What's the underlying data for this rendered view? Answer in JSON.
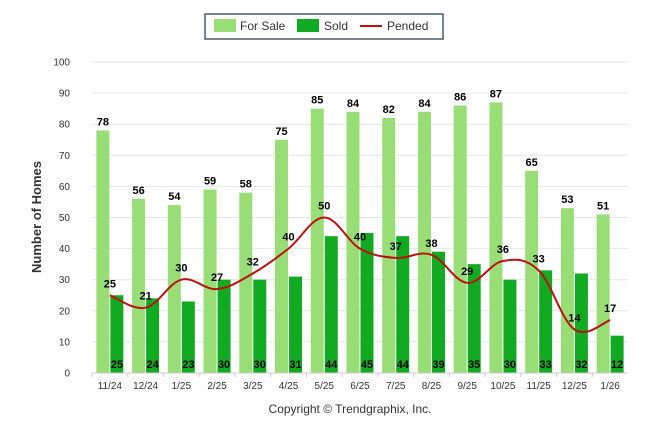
{
  "chart_data": {
    "type": "bar",
    "title": "",
    "xlabel": "",
    "ylabel": "Number of Homes",
    "ylim": [
      0,
      100
    ],
    "yticks": [
      0,
      10,
      20,
      30,
      40,
      50,
      60,
      70,
      80,
      90,
      100
    ],
    "grid": true,
    "legend_position": "top-center",
    "categories": [
      "11/24",
      "12/24",
      "1/25",
      "2/25",
      "3/25",
      "4/25",
      "5/25",
      "6/25",
      "7/25",
      "8/25",
      "9/25",
      "10/25",
      "11/25",
      "12/25",
      "1/26"
    ],
    "series": [
      {
        "name": "For Sale",
        "type": "bar",
        "color": "#99dd77",
        "values": [
          78,
          56,
          54,
          59,
          58,
          75,
          85,
          84,
          82,
          84,
          86,
          87,
          65,
          53,
          51
        ]
      },
      {
        "name": "Sold",
        "type": "bar",
        "color": "#11aa22",
        "values": [
          25,
          24,
          23,
          30,
          30,
          31,
          44,
          45,
          44,
          39,
          35,
          30,
          33,
          32,
          12
        ]
      },
      {
        "name": "Pended",
        "type": "line",
        "color": "#bb1111",
        "values": [
          25,
          21,
          30,
          27,
          32,
          40,
          50,
          40,
          37,
          38,
          29,
          36,
          33,
          14,
          17
        ]
      }
    ],
    "footer": "Copyright © Trendgraphix, Inc."
  }
}
